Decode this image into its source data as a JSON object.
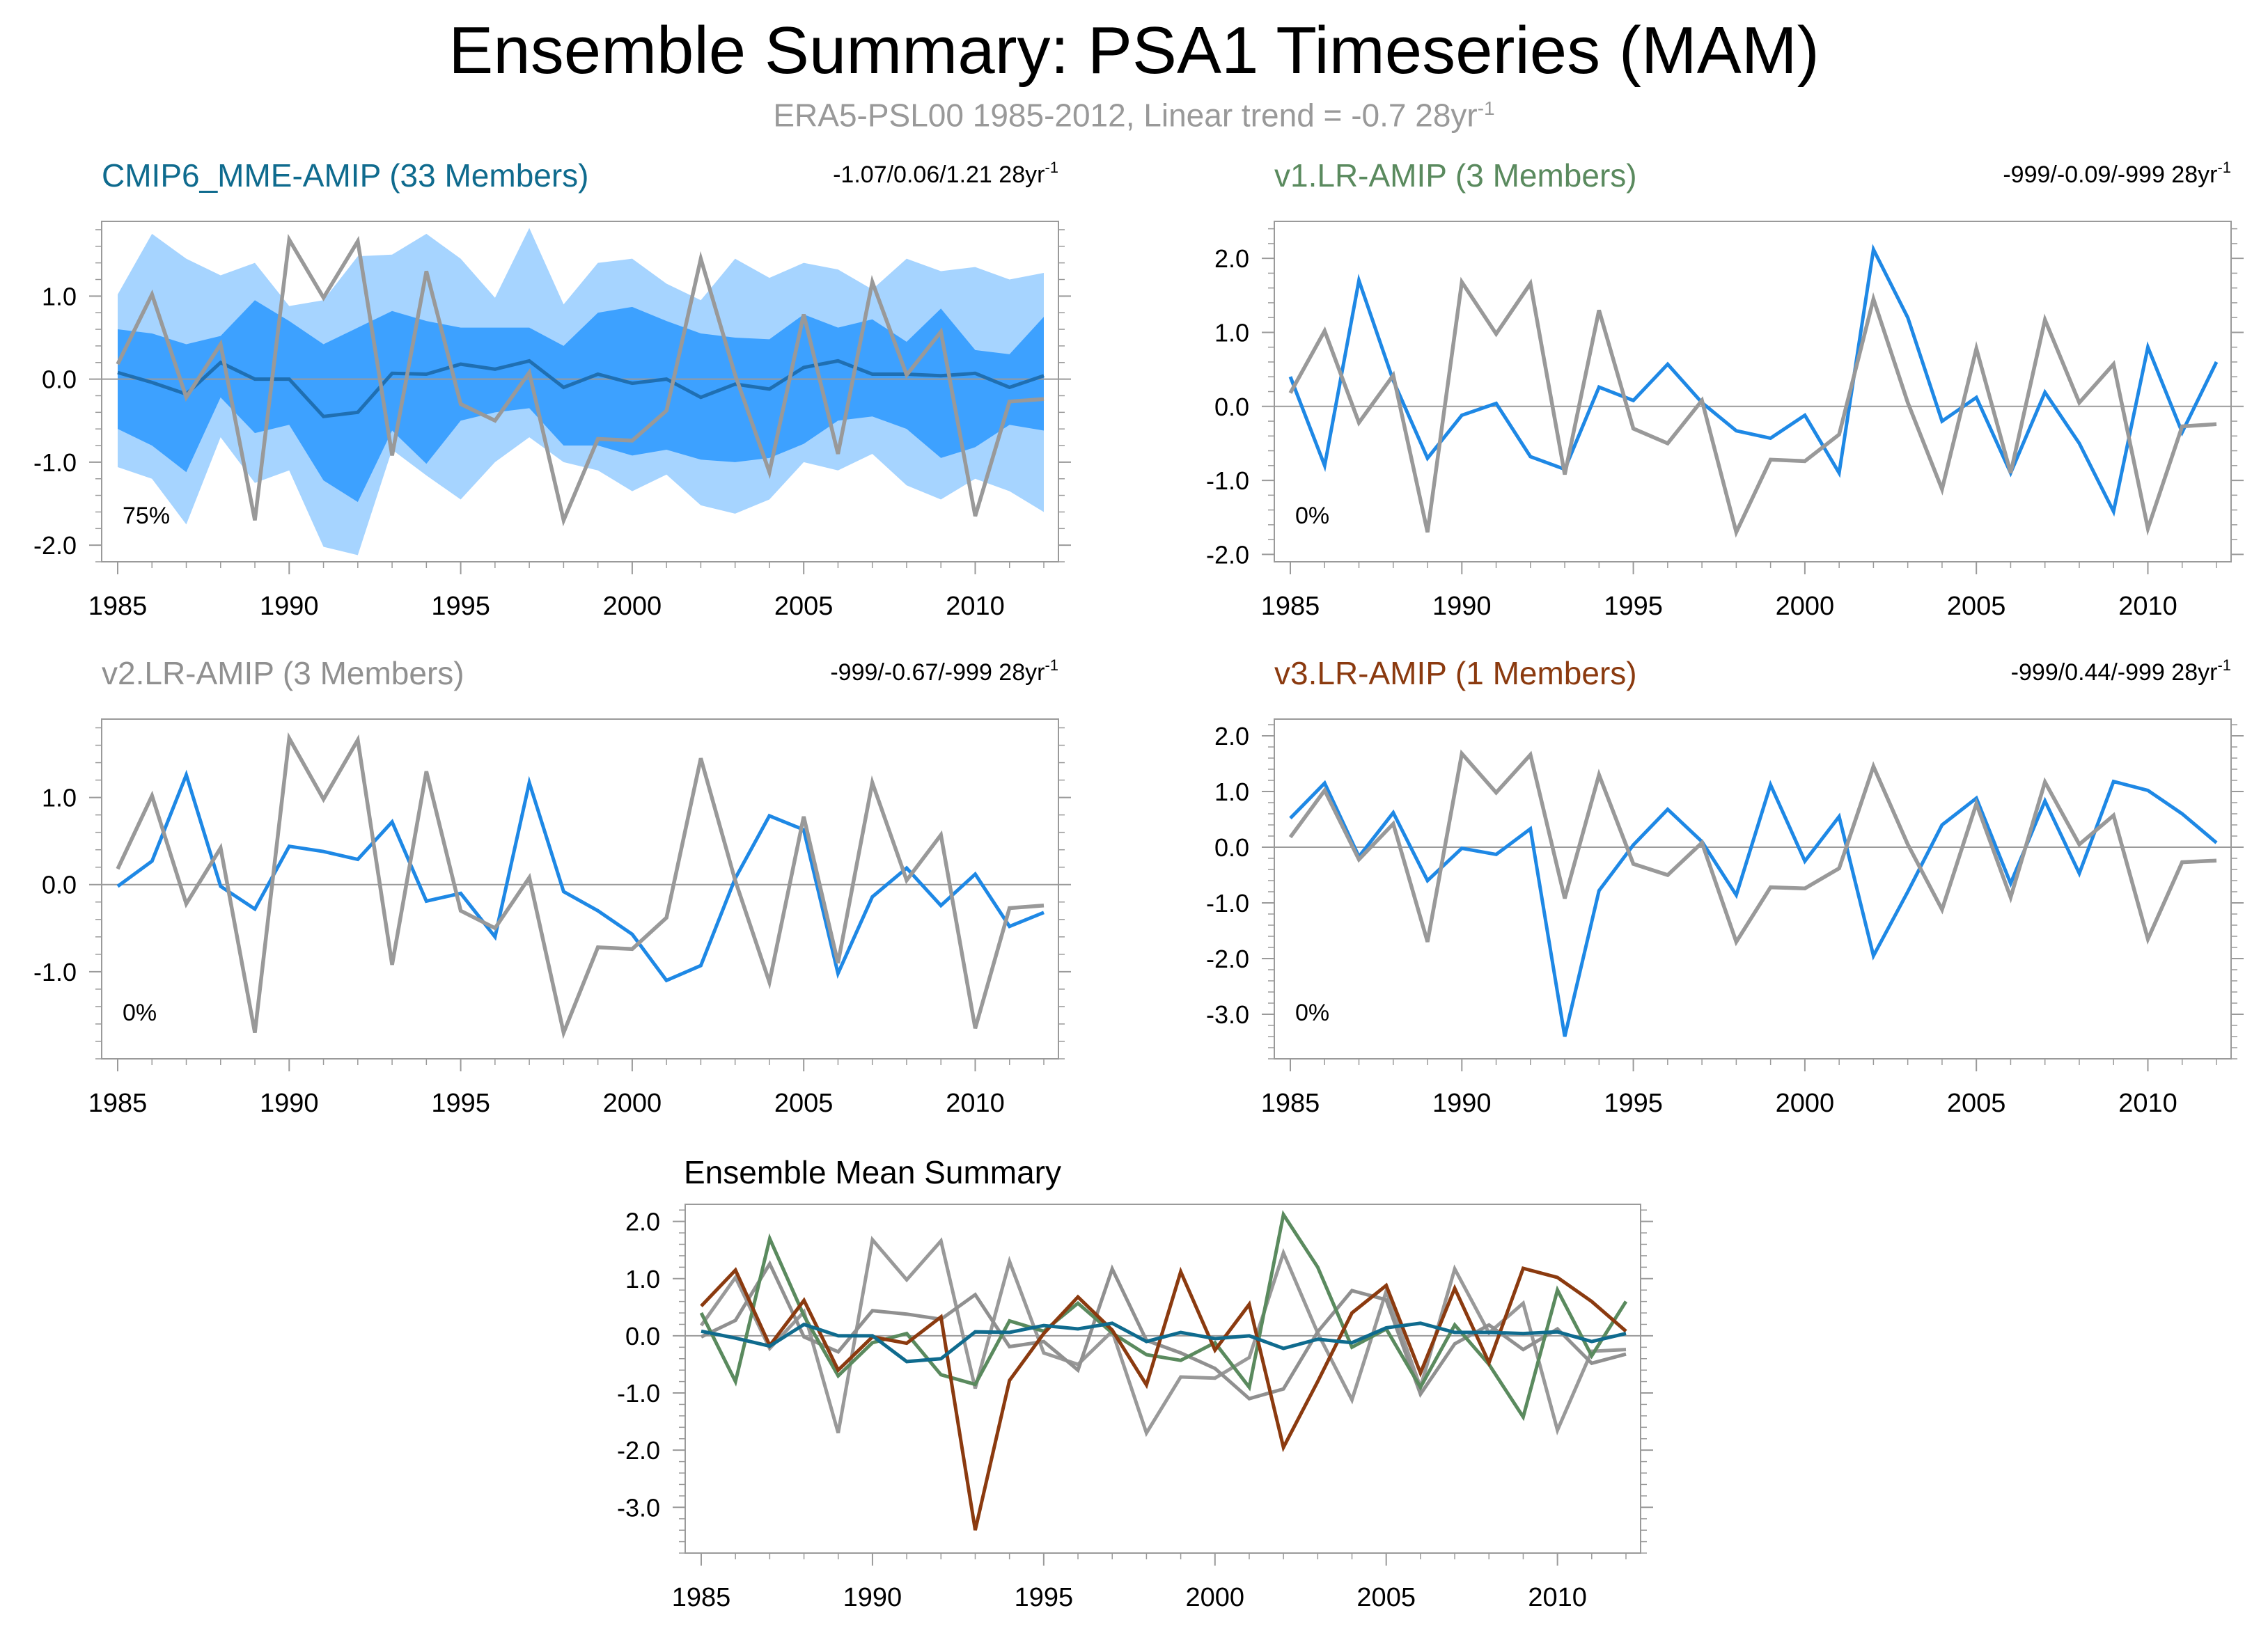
{
  "title": "Ensemble Summary: PSA1 Timeseries (MAM)",
  "subtitle": {
    "text": "ERA5-PSL00 1985-2012, Linear trend = -0.7 28yr",
    "sup": "-1"
  },
  "colors": {
    "observed": "#999999",
    "member": "#1e88e5",
    "band_outer": "#a6d4ff",
    "band_inner": "#3da1ff",
    "mme_mean": "#1f6fb2",
    "title_mme": "#0f6b8e",
    "title_v1": "#5a8a5e",
    "title_v2": "#909090",
    "title_v3": "#8b3a0f"
  },
  "chart_data": [
    {
      "id": "mme",
      "type": "line",
      "title": "CMIP6_MME-AMIP (33 Members)",
      "title_color": "#0f6b8e",
      "stats": "-1.07/0.06/1.21 28yr",
      "stats_sup": "-1",
      "corner_label": "75%",
      "x": [
        1985,
        1986,
        1987,
        1988,
        1989,
        1990,
        1991,
        1992,
        1993,
        1994,
        1995,
        1996,
        1997,
        1998,
        1999,
        2000,
        2001,
        2002,
        2003,
        2004,
        2005,
        2006,
        2007,
        2008,
        2009,
        2010,
        2011,
        2012
      ],
      "xticks": [
        1985,
        1990,
        1995,
        2000,
        2005,
        2010
      ],
      "yticks": [
        1.0,
        0.0,
        -1.0,
        -2.0
      ],
      "ylim": [
        -2.2,
        1.9
      ],
      "observed": [
        0.18,
        1.02,
        -0.22,
        0.42,
        -1.7,
        1.68,
        0.98,
        1.66,
        -0.92,
        1.3,
        -0.3,
        -0.5,
        0.08,
        -1.7,
        -0.72,
        -0.74,
        -0.38,
        1.45,
        0.05,
        -1.12,
        0.78,
        -0.9,
        1.17,
        0.05,
        0.57,
        -1.65,
        -0.27,
        -0.24
      ],
      "mean": [
        0.08,
        -0.04,
        -0.18,
        0.2,
        0.0,
        0.0,
        -0.45,
        -0.4,
        0.07,
        0.06,
        0.18,
        0.12,
        0.22,
        -0.1,
        0.06,
        -0.05,
        0.0,
        -0.22,
        -0.06,
        -0.12,
        0.14,
        0.22,
        0.06,
        0.06,
        0.04,
        0.07,
        -0.1,
        0.04
      ],
      "p10": [
        -1.06,
        -1.2,
        -1.75,
        -0.7,
        -1.25,
        -1.1,
        -2.02,
        -2.12,
        -0.85,
        -1.16,
        -1.45,
        -1.0,
        -0.7,
        -1.0,
        -1.1,
        -1.35,
        -1.15,
        -1.52,
        -1.62,
        -1.45,
        -1.0,
        -1.1,
        -0.9,
        -1.28,
        -1.45,
        -1.2,
        -1.35,
        -1.6
      ],
      "p25": [
        -0.6,
        -0.8,
        -1.12,
        -0.22,
        -0.65,
        -0.55,
        -1.22,
        -1.48,
        -0.62,
        -1.02,
        -0.5,
        -0.4,
        -0.35,
        -0.8,
        -0.8,
        -0.92,
        -0.85,
        -0.97,
        -1.0,
        -0.95,
        -0.78,
        -0.5,
        -0.45,
        -0.6,
        -0.95,
        -0.82,
        -0.55,
        -0.62
      ],
      "p75": [
        0.6,
        0.55,
        0.42,
        0.52,
        0.95,
        0.7,
        0.42,
        0.62,
        0.82,
        0.7,
        0.62,
        0.62,
        0.62,
        0.4,
        0.8,
        0.87,
        0.7,
        0.55,
        0.5,
        0.48,
        0.78,
        0.62,
        0.72,
        0.45,
        0.85,
        0.35,
        0.3,
        0.75
      ],
      "p90": [
        1.02,
        1.75,
        1.45,
        1.25,
        1.4,
        0.88,
        0.95,
        1.48,
        1.5,
        1.75,
        1.45,
        0.98,
        1.82,
        0.9,
        1.4,
        1.45,
        1.15,
        0.95,
        1.45,
        1.22,
        1.4,
        1.32,
        1.08,
        1.45,
        1.3,
        1.35,
        1.2,
        1.28
      ]
    },
    {
      "id": "v1",
      "type": "line",
      "title": "v1.LR-AMIP (3 Members)",
      "title_color": "#5a8a5e",
      "stats": "-999/-0.09/-999 28yr",
      "stats_sup": "-1",
      "corner_label": "0%",
      "x": [
        1985,
        1986,
        1987,
        1988,
        1989,
        1990,
        1991,
        1992,
        1993,
        1994,
        1995,
        1996,
        1997,
        1998,
        1999,
        2000,
        2001,
        2002,
        2003,
        2004,
        2005,
        2006,
        2007,
        2008,
        2009,
        2010,
        2011,
        2012
      ],
      "xticks": [
        1985,
        1990,
        1995,
        2000,
        2005,
        2010
      ],
      "yticks": [
        2.0,
        1.0,
        0.0,
        -1.0,
        -2.0
      ],
      "ylim": [
        -2.1,
        2.5
      ],
      "observed": [
        0.18,
        1.02,
        -0.22,
        0.42,
        -1.7,
        1.68,
        0.98,
        1.66,
        -0.92,
        1.3,
        -0.3,
        -0.5,
        0.08,
        -1.7,
        -0.72,
        -0.74,
        -0.38,
        1.45,
        0.05,
        -1.12,
        0.78,
        -0.9,
        1.17,
        0.05,
        0.57,
        -1.65,
        -0.27,
        -0.24
      ],
      "member": [
        0.4,
        -0.8,
        1.7,
        0.35,
        -0.7,
        -0.12,
        0.04,
        -0.68,
        -0.85,
        0.26,
        0.08,
        0.57,
        0.05,
        -0.33,
        -0.43,
        -0.12,
        -0.9,
        2.12,
        1.2,
        -0.2,
        0.12,
        -0.9,
        0.19,
        -0.5,
        -1.42,
        0.8,
        -0.35,
        0.6
      ]
    },
    {
      "id": "v2",
      "type": "line",
      "title": "v2.LR-AMIP (3 Members)",
      "title_color": "#909090",
      "stats": "-999/-0.67/-999 28yr",
      "stats_sup": "-1",
      "corner_label": "0%",
      "x": [
        1985,
        1986,
        1987,
        1988,
        1989,
        1990,
        1991,
        1992,
        1993,
        1994,
        1995,
        1996,
        1997,
        1998,
        1999,
        2000,
        2001,
        2002,
        2003,
        2004,
        2005,
        2006,
        2007,
        2008,
        2009,
        2010,
        2011,
        2012
      ],
      "xticks": [
        1985,
        1990,
        1995,
        2000,
        2005,
        2010
      ],
      "yticks": [
        1.0,
        0.0,
        -1.0
      ],
      "ylim": [
        -2.0,
        1.9
      ],
      "observed": [
        0.18,
        1.02,
        -0.22,
        0.42,
        -1.7,
        1.68,
        0.98,
        1.66,
        -0.92,
        1.3,
        -0.3,
        -0.5,
        0.08,
        -1.7,
        -0.72,
        -0.74,
        -0.38,
        1.45,
        0.05,
        -1.12,
        0.78,
        -0.9,
        1.17,
        0.05,
        0.57,
        -1.65,
        -0.27,
        -0.24
      ],
      "member": [
        -0.02,
        0.27,
        1.26,
        -0.02,
        -0.28,
        0.44,
        0.38,
        0.29,
        0.72,
        -0.19,
        -0.1,
        -0.6,
        1.17,
        -0.08,
        -0.3,
        -0.57,
        -1.1,
        -0.93,
        0.07,
        0.79,
        0.63,
        -1.02,
        -0.14,
        0.19,
        -0.24,
        0.12,
        -0.48,
        -0.32
      ]
    },
    {
      "id": "v3",
      "type": "line",
      "title": "v3.LR-AMIP (1 Members)",
      "title_color": "#8b3a0f",
      "stats": "-999/0.44/-999 28yr",
      "stats_sup": "-1",
      "corner_label": "0%",
      "x": [
        1985,
        1986,
        1987,
        1988,
        1989,
        1990,
        1991,
        1992,
        1993,
        1994,
        1995,
        1996,
        1997,
        1998,
        1999,
        2000,
        2001,
        2002,
        2003,
        2004,
        2005,
        2006,
        2007,
        2008,
        2009,
        2010,
        2011,
        2012
      ],
      "xticks": [
        1985,
        1990,
        1995,
        2000,
        2005,
        2010
      ],
      "yticks": [
        2.0,
        1.0,
        0.0,
        -1.0,
        -2.0,
        -3.0
      ],
      "ylim": [
        -3.8,
        2.3
      ],
      "observed": [
        0.18,
        1.02,
        -0.22,
        0.42,
        -1.7,
        1.68,
        0.98,
        1.66,
        -0.92,
        1.3,
        -0.3,
        -0.5,
        0.08,
        -1.7,
        -0.72,
        -0.74,
        -0.38,
        1.45,
        0.05,
        -1.12,
        0.78,
        -0.9,
        1.17,
        0.05,
        0.57,
        -1.65,
        -0.27,
        -0.24
      ],
      "member": [
        0.52,
        1.15,
        -0.17,
        0.62,
        -0.6,
        -0.02,
        -0.13,
        0.33,
        -3.4,
        -0.78,
        0.04,
        0.68,
        0.1,
        -0.86,
        1.12,
        -0.25,
        0.55,
        -1.95,
        -0.8,
        0.4,
        0.88,
        -0.65,
        0.83,
        -0.47,
        1.18,
        1.02,
        0.6,
        0.08
      ]
    },
    {
      "id": "mean",
      "type": "line",
      "title": "Ensemble Mean Summary",
      "x": [
        1985,
        1986,
        1987,
        1988,
        1989,
        1990,
        1991,
        1992,
        1993,
        1994,
        1995,
        1996,
        1997,
        1998,
        1999,
        2000,
        2001,
        2002,
        2003,
        2004,
        2005,
        2006,
        2007,
        2008,
        2009,
        2010,
        2011,
        2012
      ],
      "xticks": [
        1985,
        1990,
        1995,
        2000,
        2005,
        2010
      ],
      "yticks": [
        2.0,
        1.0,
        0.0,
        -1.0,
        -2.0,
        -3.0
      ],
      "ylim": [
        -3.8,
        2.3
      ],
      "series": [
        {
          "name": "ERA5",
          "color": "#999999",
          "values": [
            0.18,
            1.02,
            -0.22,
            0.42,
            -1.7,
            1.68,
            0.98,
            1.66,
            -0.92,
            1.3,
            -0.3,
            -0.5,
            0.08,
            -1.7,
            -0.72,
            -0.74,
            -0.38,
            1.45,
            0.05,
            -1.12,
            0.78,
            -0.9,
            1.17,
            0.05,
            0.57,
            -1.65,
            -0.27,
            -0.24
          ]
        },
        {
          "name": "v2.LR-AMIP",
          "color": "#909090",
          "values": [
            -0.02,
            0.27,
            1.26,
            -0.02,
            -0.28,
            0.44,
            0.38,
            0.29,
            0.72,
            -0.19,
            -0.1,
            -0.6,
            1.17,
            -0.08,
            -0.3,
            -0.57,
            -1.1,
            -0.93,
            0.07,
            0.79,
            0.63,
            -1.02,
            -0.14,
            0.19,
            -0.24,
            0.12,
            -0.48,
            -0.32
          ]
        },
        {
          "name": "v1.LR-AMIP",
          "color": "#5a8a5e",
          "values": [
            0.4,
            -0.8,
            1.7,
            0.35,
            -0.7,
            -0.12,
            0.04,
            -0.68,
            -0.85,
            0.26,
            0.08,
            0.57,
            0.05,
            -0.33,
            -0.43,
            -0.12,
            -0.9,
            2.12,
            1.2,
            -0.2,
            0.12,
            -0.9,
            0.19,
            -0.5,
            -1.42,
            0.8,
            -0.35,
            0.6
          ]
        },
        {
          "name": "v3.LR-AMIP",
          "color": "#8b3a0f",
          "values": [
            0.52,
            1.15,
            -0.17,
            0.62,
            -0.6,
            -0.02,
            -0.13,
            0.33,
            -3.4,
            -0.78,
            0.04,
            0.68,
            0.1,
            -0.86,
            1.12,
            -0.25,
            0.55,
            -1.95,
            -0.8,
            0.4,
            0.88,
            -0.65,
            0.83,
            -0.47,
            1.18,
            1.02,
            0.6,
            0.08
          ]
        },
        {
          "name": "CMIP6_MME-AMIP",
          "color": "#0f6b8e",
          "values": [
            0.08,
            -0.04,
            -0.18,
            0.2,
            0.0,
            0.0,
            -0.45,
            -0.4,
            0.07,
            0.06,
            0.18,
            0.12,
            0.22,
            -0.1,
            0.06,
            -0.05,
            0.0,
            -0.22,
            -0.06,
            -0.12,
            0.14,
            0.22,
            0.06,
            0.06,
            0.04,
            0.07,
            -0.1,
            0.04
          ]
        }
      ]
    }
  ]
}
